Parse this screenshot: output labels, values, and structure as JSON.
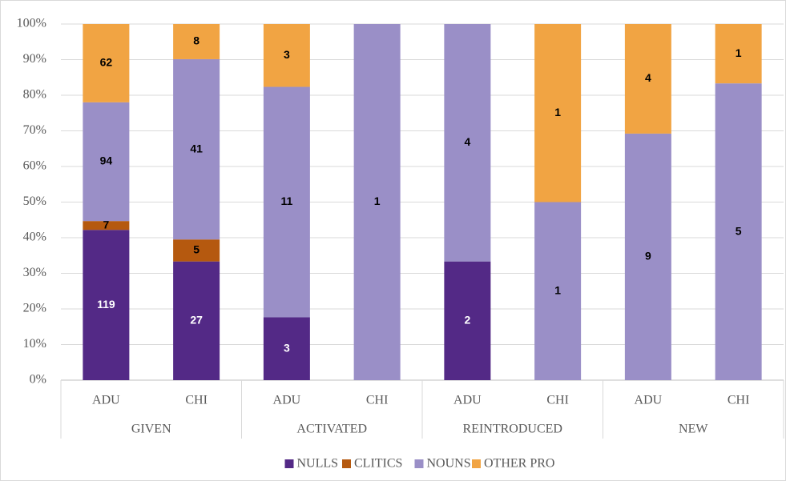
{
  "chart_data": {
    "type": "bar",
    "stacking": "percent",
    "categories": [
      "ADU",
      "CHI",
      "ADU",
      "CHI",
      "ADU",
      "CHI",
      "ADU",
      "CHI"
    ],
    "groups": [
      "GIVEN",
      "ACTIVATED",
      "REINTRODUCED",
      "NEW"
    ],
    "series": [
      {
        "name": "NULLS",
        "color": "#532986",
        "values": [
          119,
          27,
          3,
          0,
          2,
          0,
          0,
          0
        ]
      },
      {
        "name": "CLITICS",
        "color": "#b5590f",
        "values": [
          7,
          5,
          0,
          0,
          0,
          0,
          0,
          0
        ]
      },
      {
        "name": "NOUNS",
        "color": "#9a8fc7",
        "values": [
          94,
          41,
          11,
          1,
          4,
          1,
          9,
          5
        ]
      },
      {
        "name": "OTHER PRO",
        "color": "#f1a443",
        "values": [
          62,
          8,
          3,
          0,
          0,
          1,
          4,
          1
        ]
      }
    ],
    "ylim": [
      0,
      100
    ],
    "yticks": [
      {
        "value": 0,
        "label": "0%"
      },
      {
        "value": 10,
        "label": "10%"
      },
      {
        "value": 20,
        "label": "20%"
      },
      {
        "value": 30,
        "label": "30%"
      },
      {
        "value": 40,
        "label": "40%"
      },
      {
        "value": 50,
        "label": "50%"
      },
      {
        "value": 60,
        "label": "60%"
      },
      {
        "value": 70,
        "label": "70%"
      },
      {
        "value": 80,
        "label": "80%"
      },
      {
        "value": 90,
        "label": "90%"
      },
      {
        "value": 100,
        "label": "100%"
      }
    ],
    "grid": true,
    "legend": "bottom"
  }
}
